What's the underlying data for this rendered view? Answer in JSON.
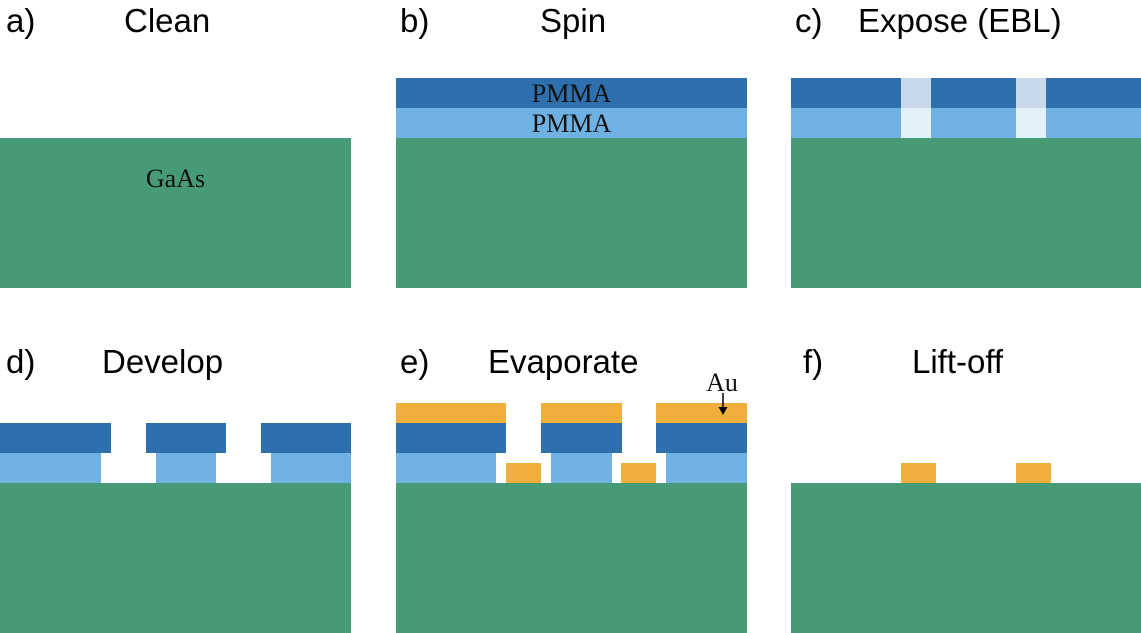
{
  "colors": {
    "gaas": "#469b76",
    "pmma_top": "#2e6fad",
    "pmma_bottom": "#6fb1e3",
    "exposed_top": "#c7d9ea",
    "exposed_bottom": "#e3f1fb",
    "gold": "#f0ae3c",
    "background": "#ffffff"
  },
  "panels": [
    {
      "letter": "a)",
      "title": "Clean"
    },
    {
      "letter": "b)",
      "title": "Spin"
    },
    {
      "letter": "c)",
      "title": "Expose (EBL)"
    },
    {
      "letter": "d)",
      "title": "Develop"
    },
    {
      "letter": "e)",
      "title": "Evaporate"
    },
    {
      "letter": "f)",
      "title": "Lift-off"
    }
  ],
  "materials": {
    "substrate": "GaAs",
    "resist_top": "PMMA",
    "resist_bottom": "PMMA",
    "metal": "Au"
  },
  "icons": {
    "metal_pointer": "arrow-down-icon"
  }
}
